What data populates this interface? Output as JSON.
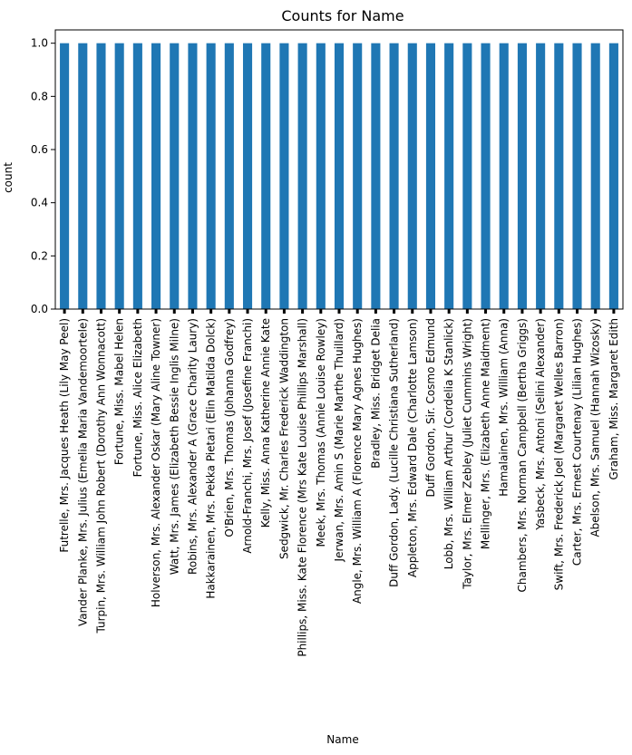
{
  "chart_data": {
    "type": "bar",
    "title": "Counts for Name",
    "xlabel": "Name",
    "ylabel": "count",
    "ylim": [
      0,
      1.05
    ],
    "yticks": [
      "0.0",
      "0.2",
      "0.4",
      "0.6",
      "0.8",
      "1.0"
    ],
    "ytick_values": [
      0,
      0.2,
      0.4,
      0.6,
      0.8,
      1.0
    ],
    "bar_color": "#1f77b4",
    "grid": false,
    "legend": "none",
    "categories": [
      "Futrelle, Mrs. Jacques Heath (Lily May Peel)",
      "Vander Planke, Mrs. Julius (Emelia Maria Vandemoortele)",
      "Turpin, Mrs. William John Robert (Dorothy Ann Wonnacott)",
      "Fortune, Miss. Mabel Helen",
      "Fortune, Miss. Alice Elizabeth",
      "Holverson, Mrs. Alexander Oskar (Mary Aline Towner)",
      "Watt, Mrs. James (Elizabeth Bessie Inglis Milne)",
      "Robins, Mrs. Alexander A (Grace Charity Laury)",
      "Hakkarainen, Mrs. Pekka Pietari (Elin Matilda Dolck)",
      "O'Brien, Mrs. Thomas (Johanna Godfrey)",
      "Arnold-Franchi, Mrs. Josef (Josefine Franchi)",
      "Kelly, Miss. Anna Katherine Annie Kate",
      "Sedgwick, Mr. Charles Frederick Waddington",
      "Phillips, Miss. Kate Florence (Mrs Kate Louise Phillips Marshall)",
      "Meek, Mrs. Thomas (Annie Louise Rowley)",
      "Jerwan, Mrs. Amin S (Marie Marthe Thuillard)",
      "Angle, Mrs. William A (Florence Mary Agnes Hughes)",
      "Bradley, Miss. Bridget Delia",
      "Duff Gordon, Lady. (Lucille Christiana Sutherland)",
      "Appleton, Mrs. Edward Dale (Charlotte Lamson)",
      "Duff Gordon, Sir. Cosmo Edmund",
      "Lobb, Mrs. William Arthur (Cordelia K Stanlick)",
      "Taylor, Mrs. Elmer Zebley (Juliet Cummins Wright)",
      "Mellinger, Mrs. (Elizabeth Anne Maidment)",
      "Hamalainen, Mrs. William (Anna)",
      "Chambers, Mrs. Norman Campbell (Bertha Griggs)",
      "Yasbeck, Mrs. Antoni (Selini Alexander)",
      "Swift, Mrs. Frederick Joel (Margaret Welles Barron)",
      "Carter, Mrs. Ernest Courtenay (Lilian Hughes)",
      "Abelson, Mrs. Samuel (Hannah Wizosky)",
      "Graham, Miss. Margaret Edith"
    ]
  }
}
